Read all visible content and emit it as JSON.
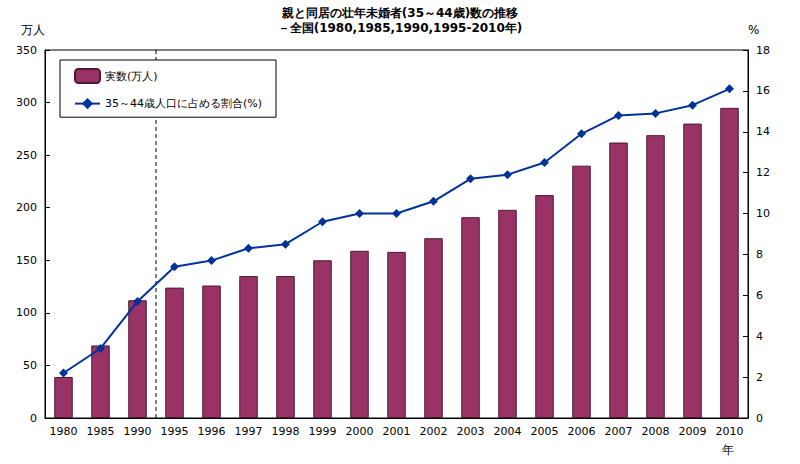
{
  "chart_data": {
    "type": "bar",
    "title": "親と同居の壮年未婚者(35～44歳)数の推移",
    "subtitle": "－全国(1980,1985,1990,1995-2010年)",
    "x_label": "年",
    "y_label": "万人",
    "y2_label": "%",
    "categories": [
      "1980",
      "1985",
      "1990",
      "1995",
      "1996",
      "1997",
      "1998",
      "1999",
      "2000",
      "2001",
      "2002",
      "2003",
      "2004",
      "2005",
      "2006",
      "2007",
      "2008",
      "2009",
      "2010"
    ],
    "series": [
      {
        "name": "実数(万人)",
        "type": "bar",
        "color": "#993366",
        "values": [
          39,
          69,
          112,
          124,
          126,
          135,
          135,
          150,
          159,
          158,
          171,
          191,
          198,
          212,
          240,
          262,
          269,
          280,
          295
        ]
      },
      {
        "name": "35～44歳人口に占める割合(%)",
        "type": "line",
        "axis": "y2",
        "color": "#003399",
        "marker": "diamond",
        "values": [
          2.2,
          3.4,
          5.7,
          7.4,
          7.7,
          8.3,
          8.5,
          9.6,
          10.0,
          10.0,
          10.6,
          11.7,
          11.9,
          12.5,
          13.9,
          14.8,
          14.9,
          15.3,
          16.1
        ]
      }
    ],
    "ylim": [
      0,
      350
    ],
    "yticks": [
      0,
      50,
      100,
      150,
      200,
      250,
      300,
      350
    ],
    "y2lim": [
      0,
      18
    ],
    "y2ticks": [
      0,
      2,
      4,
      6,
      8,
      10,
      12,
      14,
      16,
      18
    ],
    "grid": false,
    "legend": "upper left"
  }
}
